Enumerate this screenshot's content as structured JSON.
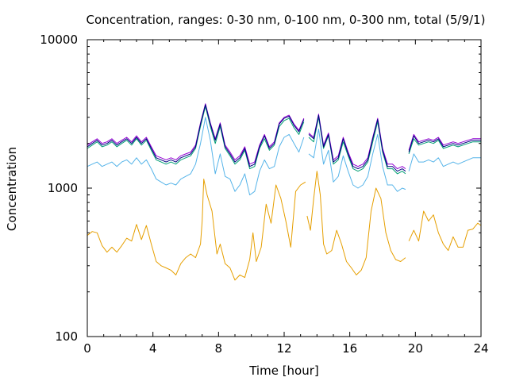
{
  "chart_data": {
    "type": "line",
    "title": "Concentration, ranges: 0-30 nm, 0-100 nm, 0-300 nm, total (5/9/1)",
    "xlabel": "Time [hour]",
    "ylabel": "Concentration",
    "xlim": [
      0,
      24
    ],
    "ylim": [
      100,
      10000
    ],
    "yscale": "log",
    "xticks": [
      0,
      4,
      8,
      12,
      16,
      20,
      24
    ],
    "xtick_labels": [
      "0",
      "4",
      "8",
      "12",
      "16",
      "20",
      "24"
    ],
    "yticks": [
      100,
      1000,
      10000
    ],
    "ytick_labels": [
      "100",
      "1000",
      "10000"
    ],
    "grid": false,
    "legend": "none",
    "series": [
      {
        "color": "#e69f00",
        "x": [
          0,
          0.3,
          0.6,
          0.9,
          1.2,
          1.5,
          1.8,
          2.1,
          2.4,
          2.7,
          3.0,
          3.3,
          3.6,
          3.9,
          4.2,
          4.5,
          4.8,
          5.1,
          5.4,
          5.7,
          6.0,
          6.3,
          6.6,
          6.9,
          7.0,
          7.1,
          7.3,
          7.6,
          7.9,
          8.1,
          8.4,
          8.7,
          9.0,
          9.3,
          9.6,
          9.9,
          10.1,
          10.3,
          10.6,
          10.9,
          11.2,
          11.5,
          11.8,
          12.1,
          12.4,
          12.7,
          13.0,
          13.3,
          null,
          13.4,
          13.6,
          13.8,
          14.0,
          14.2,
          14.4,
          14.6,
          14.9,
          15.2,
          15.5,
          15.8,
          16.1,
          16.4,
          16.7,
          17.0,
          17.3,
          17.6,
          17.9,
          18.2,
          18.5,
          18.8,
          19.1,
          19.4,
          null,
          19.6,
          19.9,
          20.2,
          20.5,
          20.8,
          21.1,
          21.4,
          21.7,
          22.0,
          22.3,
          22.6,
          22.9,
          23.2,
          23.5,
          23.8,
          24.0
        ],
        "y": [
          480,
          510,
          500,
          410,
          370,
          400,
          370,
          410,
          460,
          440,
          570,
          450,
          560,
          420,
          320,
          300,
          290,
          280,
          260,
          310,
          340,
          360,
          340,
          420,
          600,
          1150,
          900,
          700,
          360,
          420,
          310,
          290,
          240,
          260,
          250,
          330,
          500,
          320,
          400,
          780,
          580,
          1050,
          850,
          600,
          400,
          950,
          1050,
          1100,
          null,
          650,
          520,
          850,
          1300,
          900,
          420,
          360,
          380,
          520,
          420,
          320,
          290,
          260,
          280,
          340,
          700,
          1000,
          850,
          500,
          380,
          330,
          320,
          340,
          null,
          440,
          520,
          440,
          700,
          600,
          660,
          500,
          420,
          380,
          470,
          400,
          400,
          520,
          530,
          580,
          560
        ]
      },
      {
        "color": "#56b4e9",
        "x": [
          0,
          0.3,
          0.6,
          0.9,
          1.2,
          1.5,
          1.8,
          2.1,
          2.4,
          2.7,
          3.0,
          3.3,
          3.6,
          3.9,
          4.2,
          4.5,
          4.8,
          5.1,
          5.4,
          5.7,
          6.0,
          6.3,
          6.6,
          6.9,
          7.2,
          7.5,
          7.8,
          8.1,
          8.4,
          8.7,
          9.0,
          9.3,
          9.6,
          9.9,
          10.2,
          10.5,
          10.8,
          11.1,
          11.4,
          11.7,
          12.0,
          12.3,
          12.6,
          12.9,
          13.2,
          null,
          13.5,
          13.8,
          14.1,
          14.4,
          14.7,
          15.0,
          15.3,
          15.6,
          15.9,
          16.2,
          16.5,
          16.8,
          17.1,
          17.4,
          17.7,
          18.0,
          18.3,
          18.6,
          18.9,
          19.2,
          19.4,
          null,
          19.6,
          19.9,
          20.2,
          20.5,
          20.8,
          21.1,
          21.4,
          21.7,
          22.0,
          22.3,
          22.6,
          22.9,
          23.2,
          23.5,
          23.8,
          24.0
        ],
        "y": [
          1400,
          1450,
          1500,
          1400,
          1450,
          1500,
          1400,
          1500,
          1550,
          1450,
          1600,
          1450,
          1550,
          1350,
          1150,
          1100,
          1050,
          1080,
          1050,
          1150,
          1200,
          1250,
          1450,
          2000,
          3000,
          2100,
          1250,
          1700,
          1200,
          1150,
          950,
          1050,
          1250,
          900,
          950,
          1300,
          1550,
          1350,
          1400,
          1900,
          2200,
          2300,
          2000,
          1750,
          2200,
          null,
          1700,
          1600,
          2500,
          1450,
          1800,
          1100,
          1200,
          1650,
          1300,
          1050,
          1000,
          1050,
          1200,
          1700,
          2300,
          1400,
          1050,
          1050,
          950,
          1000,
          980,
          null,
          1300,
          1700,
          1500,
          1500,
          1550,
          1500,
          1600,
          1400,
          1450,
          1500,
          1450,
          1500,
          1550,
          1600,
          1600,
          1600
        ]
      },
      {
        "color": "#009e73",
        "x": [
          0,
          0.3,
          0.6,
          0.9,
          1.2,
          1.5,
          1.8,
          2.1,
          2.4,
          2.7,
          3.0,
          3.3,
          3.6,
          3.9,
          4.2,
          4.5,
          4.8,
          5.1,
          5.4,
          5.7,
          6.0,
          6.3,
          6.6,
          6.9,
          7.2,
          7.5,
          7.8,
          8.1,
          8.4,
          8.7,
          9.0,
          9.3,
          9.6,
          9.9,
          10.2,
          10.5,
          10.8,
          11.1,
          11.4,
          11.7,
          12.0,
          12.3,
          12.6,
          12.9,
          13.2,
          null,
          13.5,
          13.8,
          14.1,
          14.4,
          14.7,
          15.0,
          15.3,
          15.6,
          15.9,
          16.2,
          16.5,
          16.8,
          17.1,
          17.4,
          17.7,
          18.0,
          18.3,
          18.6,
          18.9,
          19.2,
          19.4,
          null,
          19.6,
          19.9,
          20.2,
          20.5,
          20.8,
          21.1,
          21.4,
          21.7,
          22.0,
          22.3,
          22.6,
          22.9,
          23.2,
          23.5,
          23.8,
          24.0
        ],
        "y": [
          1850,
          1950,
          2050,
          1900,
          1950,
          2050,
          1900,
          2000,
          2100,
          1950,
          2150,
          1950,
          2100,
          1800,
          1550,
          1500,
          1450,
          1500,
          1450,
          1550,
          1600,
          1650,
          1850,
          2600,
          3550,
          2600,
          2000,
          2600,
          1850,
          1650,
          1450,
          1550,
          1800,
          1350,
          1400,
          1850,
          2150,
          1800,
          1950,
          2600,
          2850,
          2950,
          2550,
          2300,
          2800,
          null,
          2200,
          2050,
          3000,
          1850,
          2250,
          1450,
          1550,
          2050,
          1650,
          1350,
          1300,
          1350,
          1500,
          2050,
          2800,
          1750,
          1350,
          1350,
          1250,
          1300,
          1250,
          null,
          1700,
          2150,
          1950,
          2000,
          2050,
          2000,
          2100,
          1850,
          1900,
          1950,
          1900,
          1950,
          2000,
          2050,
          2050,
          2050
        ]
      },
      {
        "color": "#9400d3",
        "x": [
          0,
          0.3,
          0.6,
          0.9,
          1.2,
          1.5,
          1.8,
          2.1,
          2.4,
          2.7,
          3.0,
          3.3,
          3.6,
          3.9,
          4.2,
          4.5,
          4.8,
          5.1,
          5.4,
          5.7,
          6.0,
          6.3,
          6.6,
          6.9,
          7.2,
          7.5,
          7.8,
          8.1,
          8.4,
          8.7,
          9.0,
          9.3,
          9.6,
          9.9,
          10.2,
          10.5,
          10.8,
          11.1,
          11.4,
          11.7,
          12.0,
          12.3,
          12.6,
          12.9,
          13.2,
          null,
          13.5,
          13.8,
          14.1,
          14.4,
          14.7,
          15.0,
          15.3,
          15.6,
          15.9,
          16.2,
          16.5,
          16.8,
          17.1,
          17.4,
          17.7,
          18.0,
          18.3,
          18.6,
          18.9,
          19.2,
          19.4,
          null,
          19.6,
          19.9,
          20.2,
          20.5,
          20.8,
          21.1,
          21.4,
          21.7,
          22.0,
          22.3,
          22.6,
          22.9,
          23.2,
          23.5,
          23.8,
          24.0
        ],
        "y": [
          1950,
          2050,
          2150,
          2000,
          2050,
          2150,
          2000,
          2100,
          2200,
          2050,
          2250,
          2050,
          2200,
          1900,
          1650,
          1600,
          1550,
          1600,
          1550,
          1650,
          1700,
          1750,
          1950,
          2750,
          3700,
          2750,
          2150,
          2750,
          1950,
          1750,
          1550,
          1650,
          1900,
          1450,
          1500,
          1950,
          2300,
          1900,
          2050,
          2750,
          3000,
          3100,
          2700,
          2450,
          2950,
          null,
          2350,
          2200,
          3150,
          1950,
          2350,
          1550,
          1650,
          2200,
          1750,
          1450,
          1400,
          1450,
          1600,
          2200,
          2950,
          1850,
          1450,
          1450,
          1350,
          1400,
          1350,
          null,
          1800,
          2300,
          2050,
          2100,
          2150,
          2100,
          2200,
          1950,
          2000,
          2050,
          2000,
          2050,
          2100,
          2150,
          2150,
          2150
        ]
      },
      {
        "color": "#000080",
        "x": [
          0,
          0.3,
          0.6,
          0.9,
          1.2,
          1.5,
          1.8,
          2.1,
          2.4,
          2.7,
          3.0,
          3.3,
          3.6,
          3.9,
          4.2,
          4.5,
          4.8,
          5.1,
          5.4,
          5.7,
          6.0,
          6.3,
          6.6,
          6.9,
          7.2,
          7.5,
          7.8,
          8.1,
          8.4,
          8.7,
          9.0,
          9.3,
          9.6,
          9.9,
          10.2,
          10.5,
          10.8,
          11.1,
          11.4,
          11.7,
          12.0,
          12.3,
          12.6,
          12.9,
          13.2,
          null,
          13.5,
          13.8,
          14.1,
          14.4,
          14.7,
          15.0,
          15.3,
          15.6,
          15.9,
          16.2,
          16.5,
          16.8,
          17.1,
          17.4,
          17.7,
          18.0,
          18.3,
          18.6,
          18.9,
          19.2,
          19.4,
          null,
          19.6,
          19.9,
          20.2,
          20.5,
          20.8,
          21.1,
          21.4,
          21.7,
          22.0,
          22.3,
          22.6,
          22.9,
          23.2,
          23.5,
          23.8,
          24.0
        ],
        "y": [
          1900,
          2000,
          2100,
          1950,
          2000,
          2100,
          1950,
          2050,
          2150,
          2000,
          2200,
          2000,
          2150,
          1850,
          1600,
          1550,
          1500,
          1550,
          1500,
          1600,
          1650,
          1700,
          1900,
          2700,
          3650,
          2700,
          2100,
          2700,
          1900,
          1700,
          1500,
          1600,
          1850,
          1400,
          1450,
          1900,
          2250,
          1850,
          2000,
          2700,
          2950,
          3050,
          2650,
          2400,
          2900,
          null,
          2300,
          2150,
          3100,
          1900,
          2300,
          1500,
          1600,
          2150,
          1700,
          1400,
          1350,
          1400,
          1550,
          2150,
          2900,
          1800,
          1400,
          1400,
          1300,
          1350,
          1300,
          null,
          1750,
          2250,
          2000,
          2050,
          2100,
          2050,
          2150,
          1900,
          1950,
          2000,
          1950,
          2000,
          2050,
          2100,
          2100,
          2100
        ]
      }
    ]
  }
}
